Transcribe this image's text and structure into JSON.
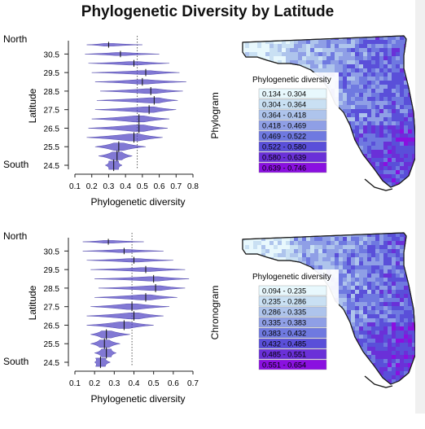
{
  "title": "Phylogenetic Diversity by Latitude",
  "chart_data": [
    {
      "type": "violin",
      "panel": "Phylogram",
      "ylabel": "Latitude",
      "xlabel": "Phylogenetic diversity",
      "y_end_labels": {
        "top": "North",
        "bottom": "South"
      },
      "ytick_labels": [
        "30.5",
        "29.5",
        "28.5",
        "27.5",
        "26.5",
        "25.5",
        "24.5"
      ],
      "xticks": [
        0.1,
        0.2,
        0.3,
        0.4,
        0.5,
        0.6,
        0.7,
        0.8
      ],
      "xtick_labels": [
        "0.1",
        "0.2",
        "0.3",
        "0.4",
        "0.5",
        "0.6",
        "0.7",
        "0.8"
      ],
      "xlim": [
        0.1,
        0.8
      ],
      "latitudes": [
        31,
        30.5,
        30,
        29.5,
        29,
        28.5,
        28,
        27.5,
        27,
        26.5,
        26,
        25.5,
        25,
        24.5
      ],
      "reference_line": 0.47,
      "median": [
        0.3,
        0.37,
        0.45,
        0.52,
        0.5,
        0.55,
        0.57,
        0.54,
        0.48,
        0.48,
        0.45,
        0.36,
        0.35,
        0.33
      ],
      "range_min": [
        0.17,
        0.16,
        0.18,
        0.2,
        0.22,
        0.25,
        0.23,
        0.22,
        0.2,
        0.18,
        0.17,
        0.22,
        0.24,
        0.28
      ],
      "range_max": [
        0.5,
        0.6,
        0.66,
        0.72,
        0.76,
        0.74,
        0.71,
        0.7,
        0.66,
        0.65,
        0.62,
        0.52,
        0.44,
        0.38
      ],
      "map_legend": {
        "title": "Phylogenetic diversity",
        "ranges": [
          "0.134 - 0.304",
          "0.304 - 0.364",
          "0.364 - 0.418",
          "0.418 - 0.469",
          "0.469 - 0.522",
          "0.522 - 0.580",
          "0.580 - 0.639",
          "0.639 - 0.746"
        ],
        "colors": [
          "#e8f8fd",
          "#c9e0f3",
          "#aec4ec",
          "#8f9fe6",
          "#6f79e0",
          "#5a4fd9",
          "#6a30d8",
          "#8a10e0"
        ]
      }
    },
    {
      "type": "violin",
      "panel": "Chronogram",
      "ylabel": "Latitude",
      "xlabel": "Phylogenetic diversity",
      "y_end_labels": {
        "top": "North",
        "bottom": "South"
      },
      "ytick_labels": [
        "30.5",
        "29.5",
        "28.5",
        "27.5",
        "26.5",
        "25.5",
        "24.5"
      ],
      "xticks": [
        0.1,
        0.2,
        0.3,
        0.4,
        0.5,
        0.6,
        0.7
      ],
      "xtick_labels": [
        "0.1",
        "0.2",
        "0.3",
        "0.4",
        "0.5",
        "0.6",
        "0.7"
      ],
      "xlim": [
        0.1,
        0.7
      ],
      "latitudes": [
        31,
        30.5,
        30,
        29.5,
        29,
        28.5,
        28,
        27.5,
        27,
        26.5,
        26,
        25.5,
        25,
        24.5
      ],
      "reference_line": 0.39,
      "median": [
        0.27,
        0.35,
        0.4,
        0.46,
        0.5,
        0.51,
        0.46,
        0.39,
        0.4,
        0.35,
        0.26,
        0.25,
        0.26,
        0.23
      ],
      "range_min": [
        0.14,
        0.14,
        0.16,
        0.18,
        0.2,
        0.22,
        0.2,
        0.18,
        0.16,
        0.16,
        0.18,
        0.18,
        0.2,
        0.2
      ],
      "range_max": [
        0.45,
        0.55,
        0.6,
        0.66,
        0.68,
        0.66,
        0.62,
        0.58,
        0.55,
        0.5,
        0.38,
        0.33,
        0.31,
        0.28
      ],
      "map_legend": {
        "title": "Phylogenetic diversity",
        "ranges": [
          "0.094 - 0.235",
          "0.235 - 0.286",
          "0.286 - 0.335",
          "0.335 - 0.383",
          "0.383 - 0.432",
          "0.432 - 0.485",
          "0.485 - 0.551",
          "0.551 - 0.654"
        ],
        "colors": [
          "#e8f8fd",
          "#c9e0f3",
          "#aec4ec",
          "#8f9fe6",
          "#6f79e0",
          "#5a4fd9",
          "#6a30d8",
          "#8a10e0"
        ]
      }
    }
  ]
}
